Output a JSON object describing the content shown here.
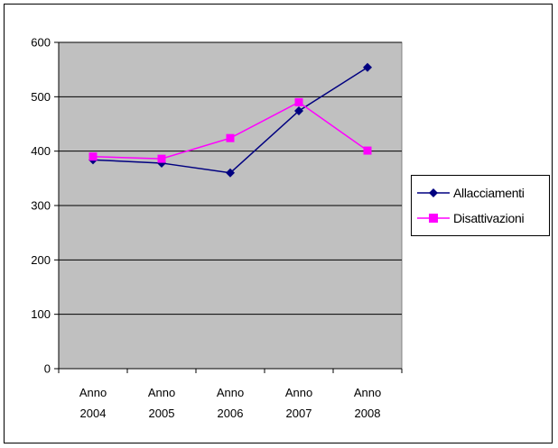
{
  "chart_data": {
    "type": "line",
    "categories": [
      "Anno\n2004",
      "Anno\n2005",
      "Anno\n2006",
      "Anno\n2007",
      "Anno\n2008"
    ],
    "series": [
      {
        "name": "Allacciamenti",
        "values": [
          384,
          378,
          360,
          474,
          554
        ],
        "color": "#000080",
        "marker": "diamond"
      },
      {
        "name": "Disattivazioni",
        "values": [
          390,
          386,
          424,
          490,
          401
        ],
        "color": "#ff00ff",
        "marker": "square"
      }
    ],
    "yticks": [
      0,
      100,
      200,
      300,
      400,
      500,
      600
    ],
    "ylim": [
      0,
      600
    ],
    "grid": true,
    "plot_background": "#c0c0c0",
    "legend_position": "right",
    "title": "",
    "xlabel": "",
    "ylabel": ""
  }
}
